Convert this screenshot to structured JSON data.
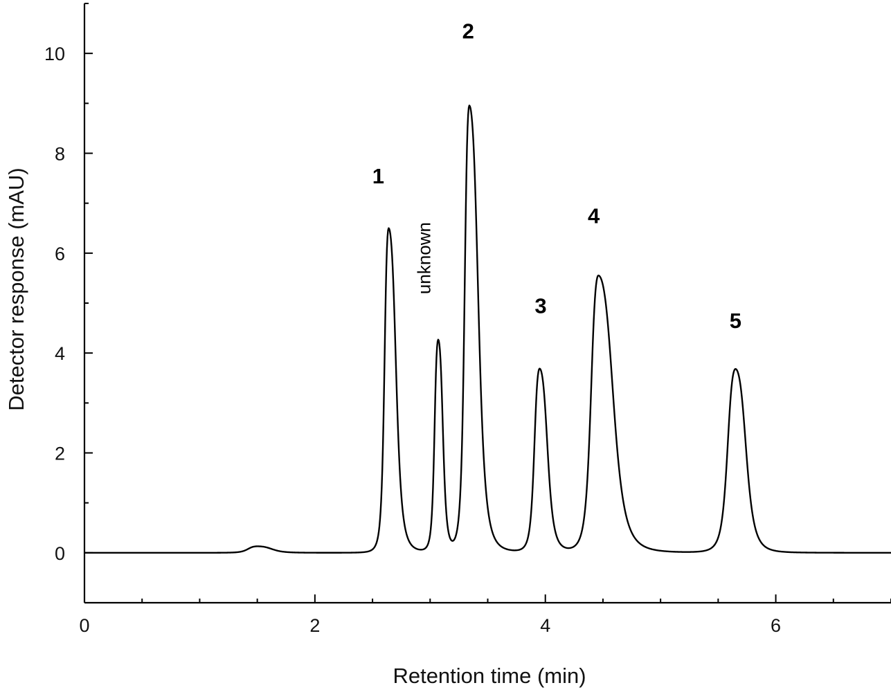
{
  "chart_data": {
    "type": "line",
    "xlabel": "Retention time (min)",
    "ylabel": "Detector response (mAU)",
    "xlim": [
      0,
      7
    ],
    "ylim": [
      -1,
      11
    ],
    "x_ticks": [
      0,
      2,
      4,
      6
    ],
    "y_ticks": [
      0,
      2,
      4,
      6,
      8,
      10
    ],
    "grid": false,
    "baseline": 0,
    "peaks": [
      {
        "label": "1",
        "rt": 2.64,
        "height": 6.5,
        "width_left": 0.04,
        "width_right": 0.07
      },
      {
        "label": "unknown",
        "rt": 3.07,
        "height": 4.25,
        "width_left": 0.035,
        "width_right": 0.045
      },
      {
        "label": "2",
        "rt": 3.34,
        "height": 8.95,
        "width_left": 0.045,
        "width_right": 0.085
      },
      {
        "label": "3",
        "rt": 3.95,
        "height": 3.68,
        "width_left": 0.05,
        "width_right": 0.075
      },
      {
        "label": "4",
        "rt": 4.46,
        "height": 5.55,
        "width_left": 0.07,
        "width_right": 0.14
      },
      {
        "label": "5",
        "rt": 5.65,
        "height": 3.68,
        "width_left": 0.075,
        "width_right": 0.1
      },
      {
        "label": "",
        "rt": 1.5,
        "height": 0.13,
        "width_left": 0.09,
        "width_right": 0.14
      }
    ],
    "annotations": [
      {
        "text": "1",
        "x": 2.55,
        "y": 7.4
      },
      {
        "text": "unknown",
        "x": 3.0,
        "y": 5.9,
        "rotation": -90
      },
      {
        "text": "2",
        "x": 3.33,
        "y": 10.3
      },
      {
        "text": "3",
        "x": 3.96,
        "y": 4.8
      },
      {
        "text": "4",
        "x": 4.42,
        "y": 6.6
      },
      {
        "text": "5",
        "x": 5.65,
        "y": 4.5
      }
    ]
  }
}
